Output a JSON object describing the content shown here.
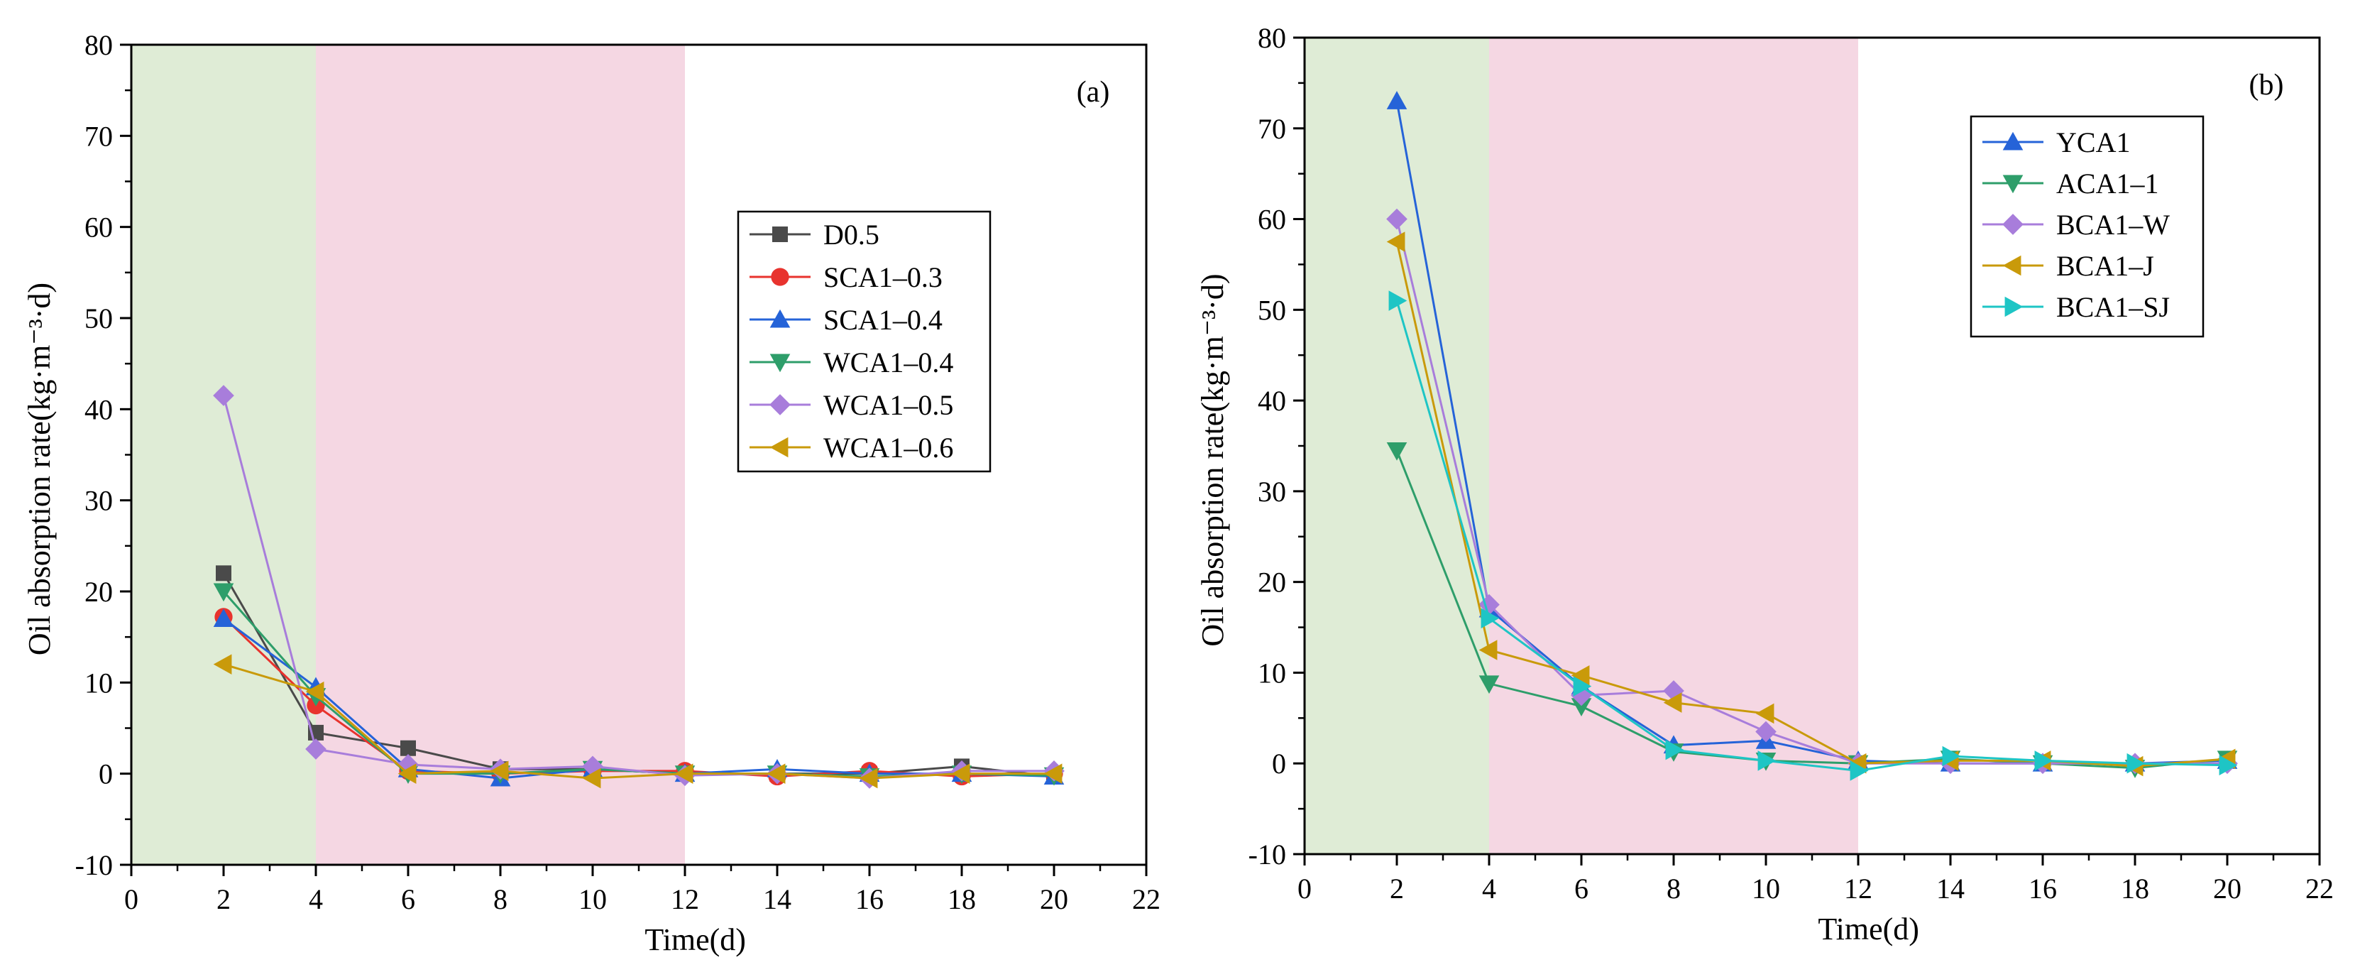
{
  "chart_data": [
    {
      "panel_label": "(a)",
      "type": "line",
      "xlabel": "Time(d)",
      "ylabel": "Oil absorption rate(kg·m⁻³·d)",
      "xlim": [
        0,
        22
      ],
      "ylim": [
        -10,
        80
      ],
      "xticks": [
        0,
        2,
        4,
        6,
        8,
        10,
        12,
        14,
        16,
        18,
        20,
        22
      ],
      "yticks": [
        -10,
        0,
        10,
        20,
        30,
        40,
        50,
        60,
        70,
        80
      ],
      "shaded_regions": [
        {
          "x_start": 0,
          "x_end": 4,
          "color": "#dfecd6"
        },
        {
          "x_start": 4,
          "x_end": 12,
          "color": "#f5d7e3"
        }
      ],
      "legend_position": "right-center",
      "x": [
        2,
        4,
        6,
        8,
        10,
        12,
        14,
        16,
        18,
        20
      ],
      "series": [
        {
          "name": "D0.5",
          "color": "#4a4a4a",
          "marker": "square",
          "values": [
            22,
            4.5,
            2.8,
            0.5,
            0.5,
            0,
            0,
            0,
            0.8,
            -0.3
          ]
        },
        {
          "name": "SCA1–0.3",
          "color": "#e8332e",
          "marker": "circle",
          "values": [
            17.2,
            7.5,
            0.3,
            0,
            0.3,
            0.3,
            -0.3,
            0.3,
            -0.3,
            0
          ]
        },
        {
          "name": "SCA1–0.4",
          "color": "#2563d8",
          "marker": "triangle-up",
          "values": [
            17,
            9.5,
            0.5,
            -0.5,
            0.5,
            0,
            0.5,
            0,
            0,
            -0.3
          ]
        },
        {
          "name": "WCA1–0.4",
          "color": "#2e9e6a",
          "marker": "triangle-down",
          "values": [
            20,
            8.5,
            0,
            0,
            0.5,
            0,
            0,
            -0.3,
            0,
            -0.2
          ]
        },
        {
          "name": "WCA1–0.5",
          "color": "#a87ddb",
          "marker": "diamond",
          "values": [
            41.5,
            2.7,
            1,
            0.5,
            0.8,
            -0.2,
            0,
            -0.5,
            0.3,
            0.3
          ]
        },
        {
          "name": "WCA1–0.6",
          "color": "#c99a0a",
          "marker": "triangle-left",
          "values": [
            12,
            9,
            0,
            0.3,
            -0.5,
            0,
            0,
            -0.5,
            0,
            0
          ]
        }
      ]
    },
    {
      "panel_label": "(b)",
      "type": "line",
      "xlabel": "Time(d)",
      "ylabel": "Oil absorption rate(kg·m⁻³·d)",
      "xlim": [
        0,
        22
      ],
      "ylim": [
        -10,
        80
      ],
      "xticks": [
        0,
        2,
        4,
        6,
        8,
        10,
        12,
        14,
        16,
        18,
        20,
        22
      ],
      "yticks": [
        -10,
        0,
        10,
        20,
        30,
        40,
        50,
        60,
        70,
        80
      ],
      "shaded_regions": [
        {
          "x_start": 0,
          "x_end": 4,
          "color": "#dfecd6"
        },
        {
          "x_start": 4,
          "x_end": 12,
          "color": "#f5d7e3"
        }
      ],
      "legend_position": "top-right",
      "x": [
        2,
        4,
        6,
        8,
        10,
        12,
        14,
        16,
        18,
        20
      ],
      "series": [
        {
          "name": "YCA1",
          "color": "#2563d8",
          "marker": "triangle-up",
          "values": [
            73,
            17,
            8.5,
            2,
            2.5,
            0.3,
            0,
            0,
            0,
            0.3
          ]
        },
        {
          "name": "ACA1–1",
          "color": "#2e9e6a",
          "marker": "triangle-down",
          "values": [
            34.5,
            8.8,
            6.3,
            1.3,
            0.3,
            0,
            0.5,
            0,
            -0.5,
            0.5
          ]
        },
        {
          "name": "BCA1–W",
          "color": "#a87ddb",
          "marker": "diamond",
          "values": [
            60,
            17.5,
            7.5,
            8,
            3.5,
            0,
            0,
            0,
            0,
            0
          ]
        },
        {
          "name": "BCA1–J",
          "color": "#c99a0a",
          "marker": "triangle-left",
          "values": [
            57.5,
            12.5,
            9.7,
            6.7,
            5.5,
            0,
            0.3,
            0.3,
            -0.3,
            0.5
          ]
        },
        {
          "name": "BCA1–SJ",
          "color": "#1ec5c5",
          "marker": "triangle-right",
          "values": [
            51,
            16,
            8.5,
            1.5,
            0.3,
            -0.8,
            0.8,
            0.3,
            0,
            -0.2
          ]
        }
      ]
    }
  ]
}
